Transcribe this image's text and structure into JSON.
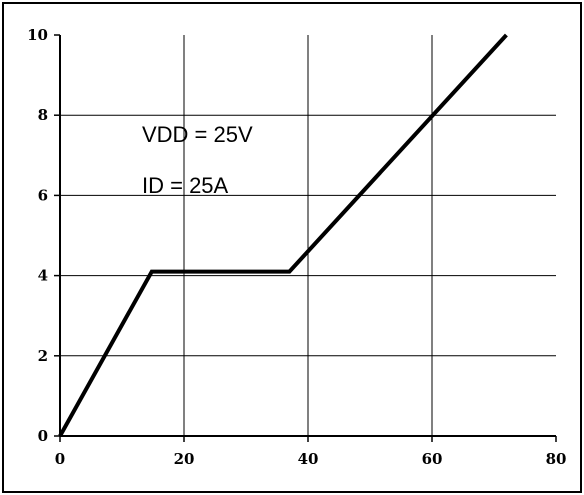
{
  "chart_data": {
    "type": "line",
    "title": "",
    "xlabel": "",
    "ylabel": "",
    "xlim": [
      0,
      80
    ],
    "ylim": [
      0,
      10
    ],
    "x_ticks": [
      0,
      20,
      40,
      60,
      80
    ],
    "y_ticks": [
      0,
      2,
      4,
      6,
      8,
      10
    ],
    "x_tick_labels": [
      "0",
      "20",
      "40",
      "60",
      "80"
    ],
    "y_tick_labels": [
      "0",
      "2",
      "4",
      "6",
      "8",
      "10"
    ],
    "grid": true,
    "series": [
      {
        "x": [
          0,
          14.8,
          37,
          72
        ],
        "y": [
          0,
          4.1,
          4.1,
          10
        ],
        "color": "#000000"
      }
    ],
    "annotations": [
      {
        "text": "VDD = 25V"
      },
      {
        "text": "ID = 25A"
      }
    ]
  }
}
